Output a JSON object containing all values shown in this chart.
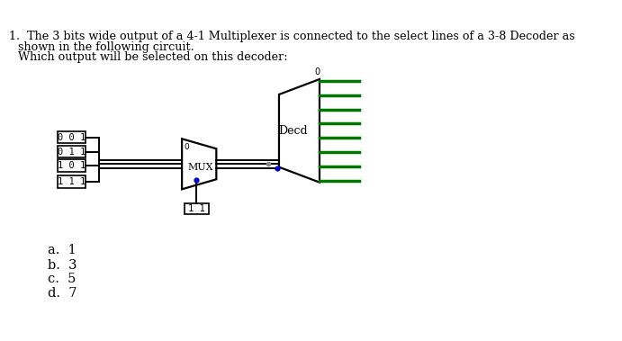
{
  "title_line1": "1.  The 3 bits wide output of a 4-1 Multiplexer is connected to the select lines of a 3-8 Decoder as",
  "title_line2": "shown in the following circuit.",
  "title_line3": "Which output will be selected on this decoder:",
  "mux_inputs": [
    "0 0 1",
    "0 1 1",
    "1 0 1",
    "1 1 1"
  ],
  "mux_select": "1 1",
  "mux_label": "MUX",
  "decoder_label": "Decd",
  "decoder_top_label": "0",
  "answers": [
    "a.  1",
    "b.  3",
    "c.  5",
    "d.  7"
  ],
  "bg_color": "#ffffff",
  "box_color": "#000000",
  "line_color": "#000000",
  "green_color": "#007700",
  "blue_color": "#0000cc",
  "gray_color": "#888888",
  "text_color": "#000000",
  "header_font_size": 9.2,
  "answer_font_size": 10.5,
  "circuit_font_size": 7.5
}
